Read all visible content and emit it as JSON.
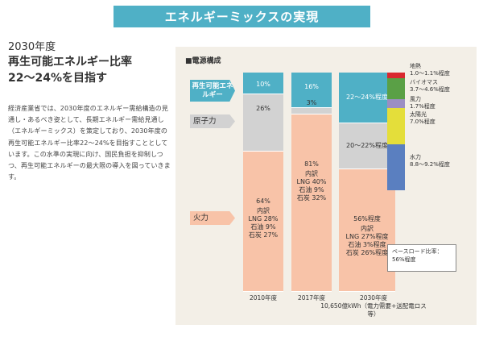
{
  "banner": {
    "title": "エネルギーミックスの実現"
  },
  "heading": {
    "year": "2030年度",
    "line1": "再生可能エネルギー比率",
    "line2": "22～24%を目指す"
  },
  "body": "経済産業省では、2030年度のエネルギー需給構造の見通し・あるべき姿として、長期エネルギー需給見通し（エネルギーミックス）を策定しており、2030年度の再生可能エネルギー比率22～24%を目指すこととしています。この水準の実現に向け、国民負担を抑制しつつ、再生可能エネルギーの最大限の導入を図っていきます。",
  "chart_data": {
    "type": "bar",
    "title": "■電源構成",
    "stacked": true,
    "categories": [
      "2010年度",
      "2017年度",
      "2030年度"
    ],
    "category_note": "10,650億kWh（電力需要+送配電ロス等）",
    "series": [
      {
        "name": "再生可能エネルギー",
        "values": [
          10,
          16,
          23
        ],
        "labels": [
          "10%",
          "16%",
          "22～24%程度"
        ],
        "color": "#4fb0c6"
      },
      {
        "name": "原子力",
        "values": [
          26,
          3,
          21
        ],
        "labels": [
          "26%",
          "3%",
          "20～22%程度"
        ],
        "color": "#d2d2d2"
      },
      {
        "name": "火力",
        "values": [
          64,
          81,
          56
        ],
        "labels": [
          "64%",
          "81%",
          "56%程度"
        ],
        "color": "#f8c3a8"
      }
    ],
    "fire_breakdown": [
      {
        "header": "内訳",
        "lines": [
          "LNG 28%",
          "石油 9%",
          "石炭 27%"
        ]
      },
      {
        "header": "内訳",
        "lines": [
          "LNG 40%",
          "石油 9%",
          "石炭 32%"
        ]
      },
      {
        "header": "内訳",
        "lines": [
          "LNG 27%程度",
          "石油 3%程度",
          "石炭 26%程度"
        ]
      }
    ],
    "renewables_breakdown": [
      {
        "name": "地熱",
        "label": "1.0～1.1%程度",
        "value": 1.05,
        "color": "#d9282f"
      },
      {
        "name": "バイオマス",
        "label": "3.7～4.6%程度",
        "value": 4.15,
        "color": "#5aa046"
      },
      {
        "name": "風力",
        "label": "1.7%程度",
        "value": 1.7,
        "color": "#9b8ec3"
      },
      {
        "name": "太陽光",
        "label": "7.0%程度",
        "value": 7.0,
        "color": "#e4de3a"
      },
      {
        "name": "水力",
        "label": "8.8～9.2%程度",
        "value": 9.0,
        "color": "#5a7fc0"
      }
    ],
    "baseload": {
      "line1": "ベースロード比率：",
      "line2": "56%程度"
    },
    "ylim": [
      0,
      100
    ]
  }
}
